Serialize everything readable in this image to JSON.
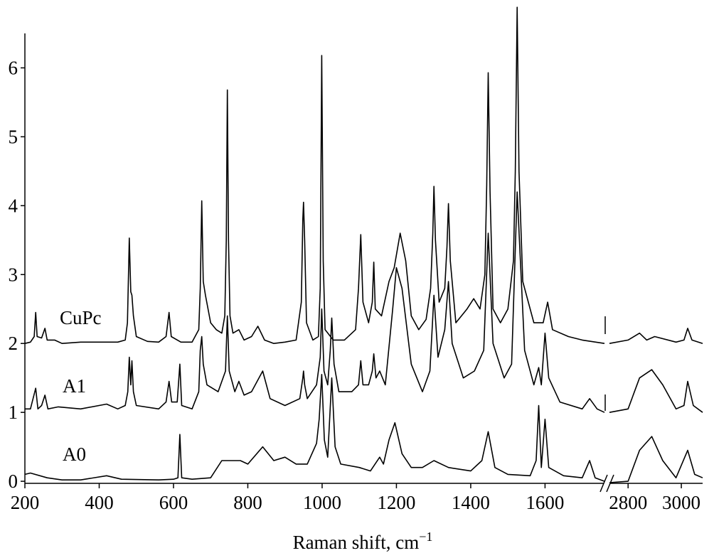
{
  "chart_data": {
    "type": "line",
    "xlabel": "Raman shift, cm",
    "xlabel_sup": "−1",
    "xsegments": [
      {
        "xlim": [
          200,
          1760
        ],
        "xticks": [
          200,
          400,
          600,
          800,
          1000,
          1200,
          1400,
          1600
        ]
      },
      {
        "xlim": [
          2730,
          3080
        ],
        "xticks": [
          2800,
          3000
        ]
      }
    ],
    "ylim": [
      -0.03,
      6.5
    ],
    "yticks": [
      0,
      1,
      2,
      3,
      4,
      5,
      6
    ],
    "series": [
      {
        "name": "CuPc",
        "color": "#000000",
        "x": [
          200,
          215,
          225,
          229,
          233,
          245,
          254,
          260,
          280,
          300,
          350,
          400,
          450,
          470,
          476,
          481,
          485,
          488,
          492,
          500,
          530,
          560,
          580,
          588,
          594,
          620,
          650,
          668,
          672,
          676,
          680,
          686,
          700,
          715,
          730,
          738,
          742,
          745,
          748,
          752,
          760,
          776,
          790,
          810,
          827,
          845,
          870,
          900,
          930,
          944,
          948,
          950,
          953,
          958,
          975,
          990,
          995,
          999,
          1003,
          1008,
          1030,
          1060,
          1090,
          1098,
          1104,
          1110,
          1125,
          1135,
          1139,
          1143,
          1160,
          1180,
          1194,
          1210,
          1225,
          1240,
          1260,
          1280,
          1292,
          1298,
          1301,
          1305,
          1315,
          1330,
          1336,
          1340,
          1345,
          1360,
          1390,
          1408,
          1425,
          1438,
          1443,
          1447,
          1452,
          1460,
          1480,
          1500,
          1515,
          1520,
          1525,
          1530,
          1540,
          1570,
          1595,
          1607,
          1620,
          1663,
          1700,
          1760,
          null,
          2730,
          2800,
          2843,
          2870,
          2900,
          2980,
          3010,
          3024,
          3040,
          3080
        ],
        "values": [
          2.0,
          2.02,
          2.1,
          2.45,
          2.1,
          2.08,
          2.22,
          2.05,
          2.05,
          2.0,
          2.02,
          2.02,
          2.02,
          2.05,
          2.3,
          3.53,
          2.75,
          2.7,
          2.4,
          2.1,
          2.03,
          2.02,
          2.1,
          2.45,
          2.1,
          2.02,
          2.02,
          2.2,
          2.8,
          4.07,
          2.9,
          2.7,
          2.3,
          2.2,
          2.15,
          2.4,
          3.5,
          5.68,
          3.5,
          2.4,
          2.15,
          2.2,
          2.05,
          2.1,
          2.25,
          2.05,
          2.0,
          2.02,
          2.05,
          2.6,
          3.8,
          4.05,
          3.5,
          2.3,
          2.05,
          2.1,
          2.8,
          6.18,
          3.2,
          2.2,
          2.05,
          2.05,
          2.2,
          2.8,
          3.58,
          2.6,
          2.3,
          2.6,
          3.18,
          2.5,
          2.4,
          2.9,
          3.1,
          3.6,
          3.2,
          2.4,
          2.2,
          2.35,
          2.8,
          3.6,
          4.28,
          3.5,
          2.6,
          2.8,
          3.4,
          4.03,
          3.2,
          2.3,
          2.5,
          2.65,
          2.5,
          3.0,
          4.3,
          5.93,
          4.2,
          2.5,
          2.3,
          2.5,
          3.2,
          4.5,
          6.88,
          4.5,
          2.9,
          2.3,
          2.3,
          2.6,
          2.2,
          2.1,
          2.05,
          2.0,
          null,
          2.0,
          2.05,
          2.15,
          2.05,
          2.1,
          2.02,
          2.05,
          2.22,
          2.05,
          2.0
        ]
      },
      {
        "name": "A1",
        "color": "#000000",
        "x": [
          200,
          215,
          229,
          235,
          245,
          254,
          262,
          290,
          350,
          420,
          450,
          470,
          477,
          481,
          485,
          488,
          492,
          500,
          560,
          580,
          588,
          595,
          610,
          617,
          622,
          650,
          668,
          672,
          676,
          680,
          690,
          720,
          740,
          745,
          750,
          765,
          776,
          790,
          810,
          840,
          860,
          900,
          940,
          948,
          950,
          953,
          960,
          985,
          995,
          999,
          1005,
          1015,
          1022,
          1026,
          1032,
          1045,
          1080,
          1098,
          1104,
          1110,
          1125,
          1135,
          1139,
          1145,
          1155,
          1170,
          1190,
          1200,
          1215,
          1240,
          1270,
          1290,
          1301,
          1312,
          1330,
          1340,
          1350,
          1380,
          1410,
          1435,
          1447,
          1460,
          1490,
          1510,
          1525,
          1545,
          1570,
          1583,
          1590,
          1600,
          1610,
          1640,
          1700,
          1720,
          1740,
          1760,
          null,
          2730,
          2800,
          2843,
          2889,
          2930,
          2980,
          3010,
          3024,
          3045,
          3080
        ],
        "values": [
          1.05,
          1.05,
          1.35,
          1.05,
          1.1,
          1.25,
          1.05,
          1.08,
          1.05,
          1.12,
          1.05,
          1.1,
          1.3,
          1.8,
          1.4,
          1.75,
          1.3,
          1.1,
          1.05,
          1.15,
          1.45,
          1.15,
          1.15,
          1.7,
          1.1,
          1.05,
          1.3,
          1.9,
          2.1,
          1.7,
          1.4,
          1.3,
          1.6,
          2.4,
          1.6,
          1.3,
          1.45,
          1.25,
          1.3,
          1.6,
          1.2,
          1.1,
          1.2,
          1.5,
          1.6,
          1.4,
          1.2,
          1.4,
          1.8,
          2.5,
          1.6,
          1.4,
          1.9,
          2.37,
          1.7,
          1.3,
          1.3,
          1.4,
          1.75,
          1.4,
          1.4,
          1.6,
          1.85,
          1.5,
          1.6,
          1.4,
          2.5,
          3.1,
          2.8,
          1.7,
          1.3,
          1.6,
          2.7,
          1.8,
          2.2,
          2.9,
          2.0,
          1.5,
          1.6,
          1.9,
          3.6,
          2.0,
          1.5,
          1.7,
          4.2,
          1.9,
          1.4,
          1.65,
          1.4,
          2.15,
          1.5,
          1.15,
          1.05,
          1.2,
          1.05,
          1.0,
          null,
          1.0,
          1.05,
          1.5,
          1.62,
          1.4,
          1.05,
          1.1,
          1.45,
          1.1,
          1.0
        ]
      },
      {
        "name": "A0",
        "color": "#000000",
        "x": [
          200,
          215,
          260,
          300,
          350,
          420,
          460,
          560,
          600,
          612,
          617,
          622,
          650,
          700,
          730,
          780,
          800,
          840,
          870,
          900,
          930,
          960,
          985,
          992,
          999,
          1006,
          1015,
          1026,
          1035,
          1050,
          1100,
          1130,
          1155,
          1165,
          1180,
          1196,
          1215,
          1240,
          1270,
          1301,
          1340,
          1400,
          1430,
          1447,
          1465,
          1500,
          1560,
          1576,
          1583,
          1590,
          1600,
          1610,
          1650,
          1700,
          1720,
          1735,
          1760,
          null,
          2730,
          2800,
          2843,
          2889,
          2930,
          2980,
          3024,
          3050,
          3080
        ],
        "values": [
          0.1,
          0.12,
          0.05,
          0.02,
          0.02,
          0.08,
          0.03,
          0.02,
          0.03,
          0.05,
          0.68,
          0.05,
          0.03,
          0.05,
          0.3,
          0.3,
          0.25,
          0.5,
          0.3,
          0.35,
          0.25,
          0.25,
          0.55,
          0.9,
          1.55,
          0.6,
          0.35,
          1.5,
          0.5,
          0.25,
          0.2,
          0.15,
          0.35,
          0.25,
          0.6,
          0.85,
          0.4,
          0.2,
          0.2,
          0.3,
          0.2,
          0.15,
          0.3,
          0.72,
          0.2,
          0.1,
          0.08,
          0.3,
          1.1,
          0.2,
          0.9,
          0.2,
          0.08,
          0.05,
          0.3,
          0.05,
          0.0,
          null,
          -0.02,
          0.0,
          0.45,
          0.65,
          0.3,
          0.05,
          0.45,
          0.1,
          0.05
        ]
      }
    ]
  }
}
